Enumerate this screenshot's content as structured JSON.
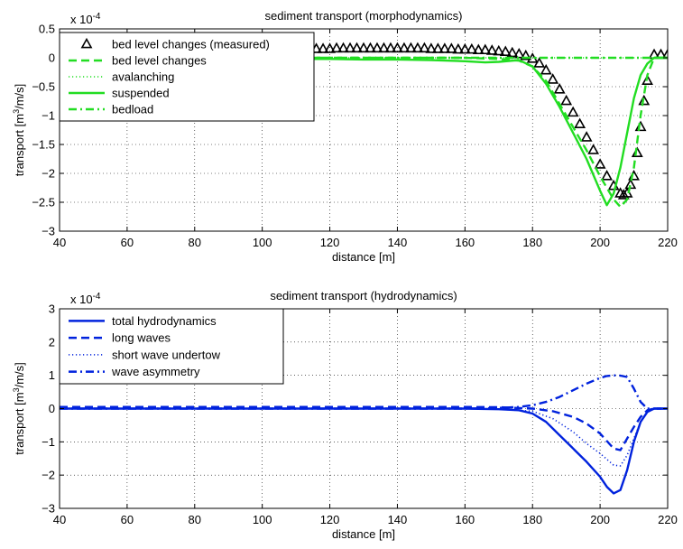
{
  "chart_data": [
    {
      "type": "line",
      "title": "sediment transport (morphodynamics)",
      "xlabel": "distance [m]",
      "ylabel_main": "transport [m",
      "ylabel_sup1": "3",
      "ylabel_mid": "/m/s]",
      "exponent_base": "x 10",
      "exponent_power": "-4",
      "xlim": [
        40,
        220
      ],
      "ylim": [
        -3,
        0.5
      ],
      "xticks": [
        40,
        60,
        80,
        100,
        120,
        140,
        160,
        180,
        200,
        220
      ],
      "yticks": [
        -3,
        -2.5,
        -2,
        -1.5,
        -1,
        -0.5,
        0,
        0.5
      ],
      "yticklabels": [
        "−3",
        "−2.5",
        "−2",
        "−1.5",
        "−1",
        "−0.5",
        "0",
        "0.5"
      ],
      "grid": "dotted",
      "legend_position": "top-left",
      "series": [
        {
          "name": "bed level changes (measured)",
          "style": "triangle-markers",
          "color": "#000000",
          "x": [
            40,
            42,
            44,
            46,
            48,
            50,
            52,
            54,
            56,
            58,
            60,
            62,
            64,
            66,
            68,
            70,
            72,
            74,
            76,
            78,
            80,
            82,
            84,
            86,
            88,
            90,
            92,
            94,
            96,
            98,
            100,
            102,
            104,
            106,
            108,
            110,
            112,
            114,
            116,
            118,
            120,
            122,
            124,
            126,
            128,
            130,
            132,
            134,
            136,
            138,
            140,
            142,
            144,
            146,
            148,
            150,
            152,
            154,
            156,
            158,
            160,
            162,
            164,
            166,
            168,
            170,
            172,
            174,
            176,
            178,
            180,
            182,
            184,
            186,
            188,
            190,
            192,
            194,
            196,
            198,
            200,
            202,
            204,
            206,
            207,
            208,
            209,
            210,
            211,
            212,
            213,
            214,
            216,
            218,
            220
          ],
          "y": [
            0.1,
            0.08,
            0.06,
            0.05,
            0.05,
            0.06,
            0.06,
            0.07,
            0.07,
            0.07,
            0.08,
            0.08,
            0.09,
            0.1,
            0.1,
            0.1,
            0.11,
            0.11,
            0.11,
            0.12,
            0.12,
            0.12,
            0.13,
            0.13,
            0.13,
            0.13,
            0.13,
            0.13,
            0.14,
            0.14,
            0.14,
            0.14,
            0.14,
            0.15,
            0.15,
            0.15,
            0.15,
            0.15,
            0.15,
            0.15,
            0.15,
            0.16,
            0.16,
            0.16,
            0.16,
            0.16,
            0.16,
            0.16,
            0.16,
            0.16,
            0.16,
            0.16,
            0.16,
            0.16,
            0.16,
            0.15,
            0.15,
            0.15,
            0.15,
            0.14,
            0.14,
            0.14,
            0.13,
            0.13,
            0.12,
            0.11,
            0.1,
            0.08,
            0.06,
            0.03,
            -0.02,
            -0.1,
            -0.22,
            -0.38,
            -0.55,
            -0.75,
            -0.95,
            -1.15,
            -1.38,
            -1.6,
            -1.85,
            -2.05,
            -2.22,
            -2.35,
            -2.38,
            -2.35,
            -2.2,
            -2.05,
            -1.65,
            -1.2,
            -0.75,
            -0.4,
            0.05,
            0.05,
            0.05
          ]
        },
        {
          "name": "bed level changes",
          "style": "dashed",
          "color": "#22dd22",
          "x": [
            40,
            60,
            80,
            100,
            120,
            140,
            160,
            170,
            176,
            180,
            184,
            188,
            192,
            196,
            200,
            202,
            204,
            206,
            208,
            210,
            212,
            214,
            216,
            220
          ],
          "y": [
            0,
            0,
            0,
            0,
            0,
            0,
            0,
            -0.02,
            -0.05,
            -0.15,
            -0.4,
            -0.8,
            -1.2,
            -1.6,
            -2.05,
            -2.25,
            -2.45,
            -2.58,
            -2.45,
            -1.9,
            -1,
            -0.3,
            0,
            0
          ]
        },
        {
          "name": "avalanching",
          "style": "dotted",
          "color": "#22dd22",
          "x": [
            40,
            100,
            160,
            200,
            220
          ],
          "y": [
            0,
            0,
            0,
            0,
            0
          ]
        },
        {
          "name": "suspended",
          "style": "solid",
          "color": "#22dd22",
          "x": [
            40,
            50,
            60,
            70,
            80,
            90,
            100,
            110,
            120,
            130,
            140,
            150,
            160,
            166,
            170,
            176,
            180,
            184,
            188,
            192,
            196,
            200,
            202,
            204,
            206,
            208,
            210,
            212,
            214,
            216,
            220
          ],
          "y": [
            -0.02,
            -0.05,
            -0.05,
            -0.04,
            -0.03,
            -0.02,
            -0.02,
            -0.02,
            -0.02,
            -0.03,
            -0.03,
            -0.04,
            -0.06,
            -0.08,
            -0.07,
            -0.04,
            -0.15,
            -0.45,
            -0.85,
            -1.3,
            -1.75,
            -2.3,
            -2.55,
            -2.35,
            -1.9,
            -1.3,
            -0.7,
            -0.3,
            -0.1,
            0,
            0
          ]
        },
        {
          "name": "bedload",
          "style": "dashdot",
          "color": "#22dd22",
          "x": [
            40,
            100,
            160,
            200,
            220
          ],
          "y": [
            0,
            0,
            0,
            0,
            0
          ]
        }
      ]
    },
    {
      "type": "line",
      "title": "sediment transport (hydrodynamics)",
      "xlabel": "distance [m]",
      "ylabel_main": "transport [m",
      "ylabel_sup1": "3",
      "ylabel_mid": "/m/s]",
      "exponent_base": "x 10",
      "exponent_power": "-4",
      "xlim": [
        40,
        220
      ],
      "ylim": [
        -3,
        3
      ],
      "xticks": [
        40,
        60,
        80,
        100,
        120,
        140,
        160,
        180,
        200,
        220
      ],
      "yticks": [
        -3,
        -2,
        -1,
        0,
        1,
        2,
        3
      ],
      "yticklabels": [
        "−3",
        "−2",
        "−1",
        "0",
        "1",
        "2",
        "3"
      ],
      "grid": "dotted",
      "legend_position": "top-left",
      "series": [
        {
          "name": "total hydrodynamics",
          "style": "solid",
          "color": "#0022dd",
          "x": [
            40,
            60,
            80,
            100,
            120,
            140,
            160,
            170,
            176,
            180,
            184,
            188,
            192,
            196,
            200,
            202,
            204,
            206,
            208,
            210,
            212,
            214,
            216,
            220
          ],
          "y": [
            0,
            0,
            0,
            0,
            0,
            0,
            0,
            -0.02,
            -0.05,
            -0.15,
            -0.4,
            -0.8,
            -1.2,
            -1.6,
            -2.05,
            -2.35,
            -2.55,
            -2.45,
            -1.85,
            -1.0,
            -0.4,
            -0.1,
            0,
            0
          ]
        },
        {
          "name": "long waves",
          "style": "dashed",
          "color": "#0022dd",
          "x": [
            40,
            60,
            80,
            100,
            120,
            140,
            160,
            170,
            180,
            186,
            192,
            196,
            200,
            204,
            206,
            208,
            210,
            212,
            214,
            216,
            220
          ],
          "y": [
            0.05,
            0.05,
            0.05,
            0.05,
            0.05,
            0.05,
            0.05,
            0.04,
            0,
            -0.08,
            -0.25,
            -0.45,
            -0.75,
            -1.2,
            -1.25,
            -0.9,
            -0.55,
            -0.25,
            -0.05,
            0,
            0
          ]
        },
        {
          "name": "short wave undertow",
          "style": "dotted",
          "color": "#0022dd",
          "x": [
            40,
            60,
            80,
            100,
            120,
            140,
            160,
            170,
            180,
            186,
            192,
            196,
            200,
            204,
            206,
            208,
            210,
            212,
            214,
            216,
            220
          ],
          "y": [
            0,
            0,
            0,
            0,
            0,
            0,
            0,
            -0.02,
            -0.08,
            -0.3,
            -0.7,
            -1.05,
            -1.35,
            -1.7,
            -1.72,
            -1.4,
            -0.9,
            -0.4,
            -0.1,
            0,
            0
          ]
        },
        {
          "name": "wave asymmetry",
          "style": "dashdot",
          "color": "#0022dd",
          "x": [
            40,
            60,
            80,
            100,
            120,
            140,
            160,
            170,
            176,
            180,
            184,
            188,
            192,
            196,
            200,
            202,
            204,
            206,
            208,
            210,
            212,
            214,
            216,
            220
          ],
          "y": [
            0,
            0,
            0,
            0,
            0,
            0,
            0,
            0.02,
            0.05,
            0.1,
            0.2,
            0.35,
            0.55,
            0.75,
            0.92,
            0.98,
            1.0,
            0.99,
            0.95,
            0.6,
            0.2,
            0,
            0,
            0
          ]
        }
      ]
    }
  ]
}
